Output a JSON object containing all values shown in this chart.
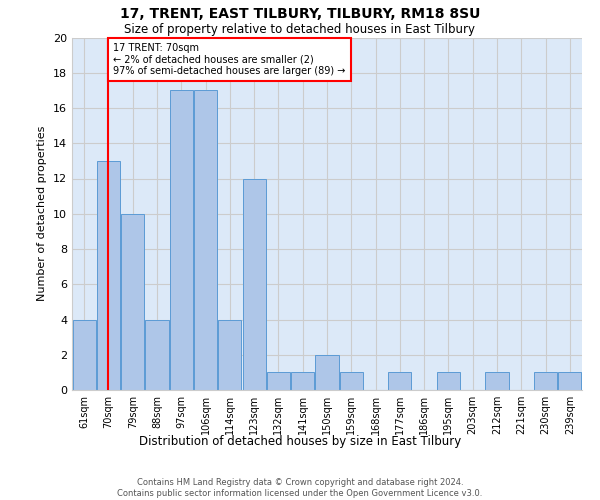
{
  "title": "17, TRENT, EAST TILBURY, TILBURY, RM18 8SU",
  "subtitle": "Size of property relative to detached houses in East Tilbury",
  "xlabel": "Distribution of detached houses by size in East Tilbury",
  "ylabel": "Number of detached properties",
  "footer_line1": "Contains HM Land Registry data © Crown copyright and database right 2024.",
  "footer_line2": "Contains public sector information licensed under the Open Government Licence v3.0.",
  "categories": [
    "61sqm",
    "70sqm",
    "79sqm",
    "88sqm",
    "97sqm",
    "106sqm",
    "114sqm",
    "123sqm",
    "132sqm",
    "141sqm",
    "150sqm",
    "159sqm",
    "168sqm",
    "177sqm",
    "186sqm",
    "195sqm",
    "203sqm",
    "212sqm",
    "221sqm",
    "230sqm",
    "239sqm"
  ],
  "values": [
    4,
    13,
    10,
    4,
    17,
    17,
    4,
    12,
    1,
    1,
    2,
    1,
    0,
    1,
    0,
    1,
    0,
    1,
    0,
    1,
    1
  ],
  "bar_color": "#aec6e8",
  "bar_edge_color": "#5b9bd5",
  "highlight_index": 1,
  "highlight_color": "#ff0000",
  "ylim": [
    0,
    20
  ],
  "yticks": [
    0,
    2,
    4,
    6,
    8,
    10,
    12,
    14,
    16,
    18,
    20
  ],
  "annotation_text": "17 TRENT: 70sqm\n← 2% of detached houses are smaller (2)\n97% of semi-detached houses are larger (89) →",
  "annotation_box_color": "#ffffff",
  "annotation_box_edgecolor": "#ff0000",
  "grid_color": "#cccccc",
  "background_color": "#ffffff",
  "plot_background": "#dce9f8"
}
